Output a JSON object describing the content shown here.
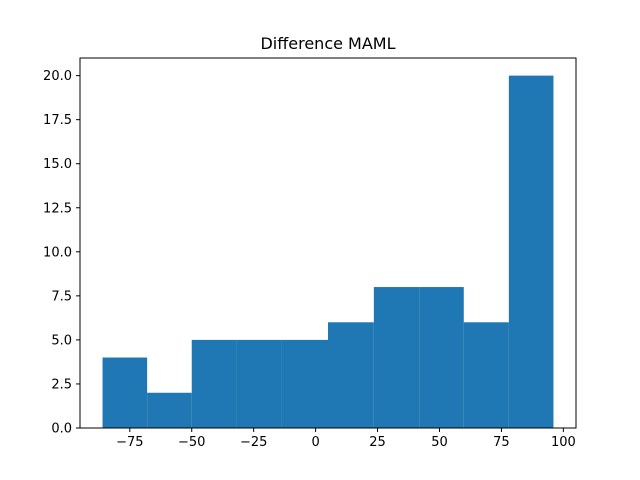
{
  "chart_data": {
    "type": "bar",
    "title": "Difference MAML",
    "xlabel": "",
    "ylabel": "",
    "bar_color": "#1f77b4",
    "bins": [
      {
        "x0": -86.0,
        "x1": -68.0,
        "count": 4
      },
      {
        "x0": -68.0,
        "x1": -50.0,
        "count": 2
      },
      {
        "x0": -50.0,
        "x1": -31.9,
        "count": 5
      },
      {
        "x0": -31.9,
        "x1": -13.8,
        "count": 5
      },
      {
        "x0": -13.8,
        "x1": 5.0,
        "count": 5
      },
      {
        "x0": 5.0,
        "x1": 23.5,
        "count": 6
      },
      {
        "x0": 23.5,
        "x1": 41.8,
        "count": 8
      },
      {
        "x0": 41.8,
        "x1": 59.8,
        "count": 8
      },
      {
        "x0": 59.8,
        "x1": 78.0,
        "count": 6
      },
      {
        "x0": 78.0,
        "x1": 96.0,
        "count": 20
      }
    ],
    "xlim": [
      -95.1,
      105.1
    ],
    "ylim": [
      0,
      21.0
    ],
    "xticks": [
      {
        "value": -75,
        "label": "−75"
      },
      {
        "value": -50,
        "label": "−50"
      },
      {
        "value": -25,
        "label": "−25"
      },
      {
        "value": 0,
        "label": "0"
      },
      {
        "value": 25,
        "label": "25"
      },
      {
        "value": 50,
        "label": "50"
      },
      {
        "value": 75,
        "label": "75"
      },
      {
        "value": 100,
        "label": "100"
      }
    ],
    "yticks": [
      {
        "value": 0,
        "label": "0.0"
      },
      {
        "value": 2.5,
        "label": "2.5"
      },
      {
        "value": 5,
        "label": "5.0"
      },
      {
        "value": 7.5,
        "label": "7.5"
      },
      {
        "value": 10,
        "label": "10.0"
      },
      {
        "value": 12.5,
        "label": "12.5"
      },
      {
        "value": 15,
        "label": "15.0"
      },
      {
        "value": 17.5,
        "label": "17.5"
      },
      {
        "value": 20,
        "label": "20.0"
      }
    ],
    "grid": false,
    "legend": "none"
  }
}
